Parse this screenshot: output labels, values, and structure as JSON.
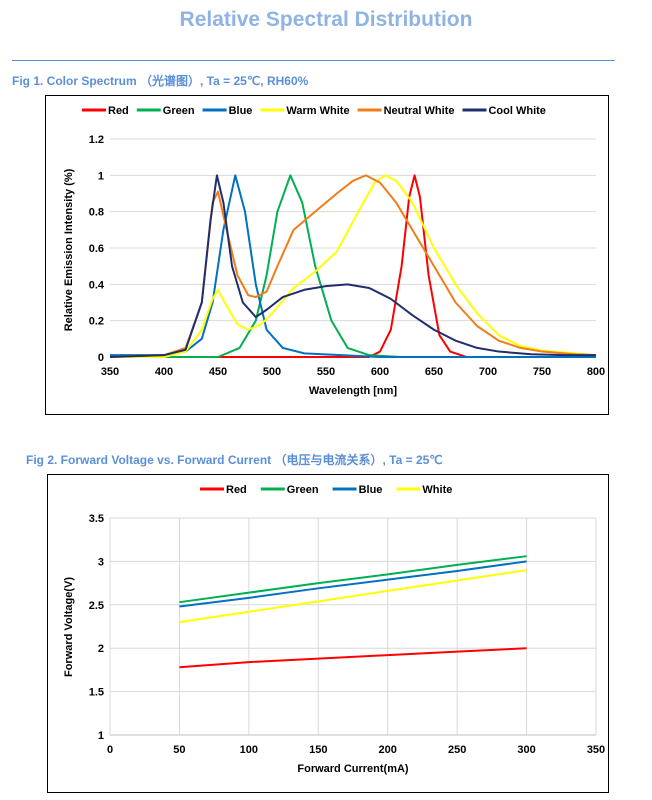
{
  "page": {
    "title": "Relative Spectral Distribution",
    "fig1_caption": "Fig 1. Color Spectrum （光谱图）, Ta = 25℃, RH60%",
    "fig2_caption": "Fig 2. Forward Voltage vs. Forward Current （电压与电流关系）, Ta = 25℃"
  },
  "chart_data": [
    {
      "type": "line",
      "xlabel": "Wavelength  [nm]",
      "ylabel": "Relative Emission Intensity (%)",
      "xlim": [
        350,
        800
      ],
      "ylim": [
        0,
        1.2
      ],
      "xticks": [
        350,
        400,
        450,
        500,
        550,
        600,
        650,
        700,
        750,
        800
      ],
      "yticks": [
        0,
        0.2,
        0.4,
        0.6,
        0.8,
        1,
        1.2
      ],
      "ytick_labels": [
        "0",
        "0.2",
        "0.4",
        "0.6",
        "0.8",
        "1",
        "1.2"
      ],
      "grid": true,
      "legend": "top",
      "series": [
        {
          "name": "Red",
          "color": "#ff0000",
          "points": [
            [
              350,
              0
            ],
            [
              590,
              0
            ],
            [
              600,
              0.03
            ],
            [
              610,
              0.15
            ],
            [
              620,
              0.5
            ],
            [
              627,
              0.88
            ],
            [
              632,
              1
            ],
            [
              637,
              0.88
            ],
            [
              645,
              0.45
            ],
            [
              655,
              0.12
            ],
            [
              665,
              0.03
            ],
            [
              680,
              0
            ],
            [
              800,
              0
            ]
          ]
        },
        {
          "name": "Green",
          "color": "#00b050",
          "points": [
            [
              350,
              0
            ],
            [
              450,
              0
            ],
            [
              470,
              0.05
            ],
            [
              485,
              0.2
            ],
            [
              495,
              0.45
            ],
            [
              505,
              0.8
            ],
            [
              517,
              1
            ],
            [
              528,
              0.85
            ],
            [
              540,
              0.5
            ],
            [
              555,
              0.2
            ],
            [
              570,
              0.05
            ],
            [
              590,
              0.01
            ],
            [
              620,
              0
            ],
            [
              800,
              0
            ]
          ]
        },
        {
          "name": "Blue",
          "color": "#0070c0",
          "points": [
            [
              350,
              0.01
            ],
            [
              400,
              0.01
            ],
            [
              420,
              0.03
            ],
            [
              435,
              0.1
            ],
            [
              445,
              0.3
            ],
            [
              455,
              0.7
            ],
            [
              466,
              1
            ],
            [
              475,
              0.8
            ],
            [
              485,
              0.4
            ],
            [
              495,
              0.15
            ],
            [
              510,
              0.05
            ],
            [
              530,
              0.02
            ],
            [
              600,
              0
            ],
            [
              800,
              0
            ]
          ]
        },
        {
          "name": "Warm White",
          "color": "#ffff00",
          "points": [
            [
              350,
              0
            ],
            [
              400,
              0
            ],
            [
              420,
              0.03
            ],
            [
              435,
              0.15
            ],
            [
              445,
              0.32
            ],
            [
              450,
              0.37
            ],
            [
              458,
              0.28
            ],
            [
              468,
              0.18
            ],
            [
              478,
              0.15
            ],
            [
              490,
              0.18
            ],
            [
              500,
              0.24
            ],
            [
              520,
              0.38
            ],
            [
              540,
              0.47
            ],
            [
              560,
              0.58
            ],
            [
              580,
              0.8
            ],
            [
              595,
              0.96
            ],
            [
              605,
              1
            ],
            [
              615,
              0.97
            ],
            [
              630,
              0.85
            ],
            [
              650,
              0.6
            ],
            [
              670,
              0.4
            ],
            [
              690,
              0.24
            ],
            [
              710,
              0.12
            ],
            [
              730,
              0.06
            ],
            [
              750,
              0.035
            ],
            [
              780,
              0.02
            ],
            [
              800,
              0.01
            ]
          ]
        },
        {
          "name": "Neutral White",
          "color": "#f07d1a",
          "points": [
            [
              350,
              0
            ],
            [
              400,
              0.01
            ],
            [
              420,
              0.05
            ],
            [
              435,
              0.3
            ],
            [
              445,
              0.85
            ],
            [
              450,
              0.91
            ],
            [
              458,
              0.7
            ],
            [
              468,
              0.45
            ],
            [
              478,
              0.34
            ],
            [
              485,
              0.33
            ],
            [
              495,
              0.36
            ],
            [
              505,
              0.5
            ],
            [
              520,
              0.7
            ],
            [
              540,
              0.8
            ],
            [
              560,
              0.9
            ],
            [
              575,
              0.97
            ],
            [
              587,
              1
            ],
            [
              600,
              0.96
            ],
            [
              615,
              0.85
            ],
            [
              630,
              0.7
            ],
            [
              650,
              0.5
            ],
            [
              670,
              0.3
            ],
            [
              690,
              0.17
            ],
            [
              710,
              0.09
            ],
            [
              730,
              0.05
            ],
            [
              750,
              0.03
            ],
            [
              780,
              0.015
            ],
            [
              800,
              0.01
            ]
          ]
        },
        {
          "name": "Cool White",
          "color": "#1f2f6e",
          "points": [
            [
              350,
              0
            ],
            [
              400,
              0.01
            ],
            [
              420,
              0.04
            ],
            [
              435,
              0.3
            ],
            [
              443,
              0.75
            ],
            [
              449,
              1
            ],
            [
              455,
              0.85
            ],
            [
              463,
              0.5
            ],
            [
              473,
              0.3
            ],
            [
              485,
              0.22
            ],
            [
              495,
              0.26
            ],
            [
              510,
              0.33
            ],
            [
              530,
              0.37
            ],
            [
              550,
              0.39
            ],
            [
              570,
              0.4
            ],
            [
              590,
              0.38
            ],
            [
              610,
              0.32
            ],
            [
              630,
              0.23
            ],
            [
              650,
              0.15
            ],
            [
              670,
              0.09
            ],
            [
              690,
              0.05
            ],
            [
              710,
              0.03
            ],
            [
              740,
              0.015
            ],
            [
              770,
              0.01
            ],
            [
              800,
              0.01
            ]
          ]
        }
      ]
    },
    {
      "type": "line",
      "xlabel": "Forward Current(mA)",
      "ylabel": "Forward Voltage(V)",
      "xlim": [
        0,
        350
      ],
      "ylim": [
        1,
        3.5
      ],
      "xticks": [
        0,
        50,
        100,
        150,
        200,
        250,
        300,
        350
      ],
      "yticks": [
        1,
        1.5,
        2,
        2.5,
        3,
        3.5
      ],
      "ytick_labels": [
        "1",
        "1.5",
        "2",
        "2.5",
        "3",
        "3.5"
      ],
      "grid": true,
      "legend": "top",
      "series": [
        {
          "name": "Red",
          "color": "#ff0000",
          "points": [
            [
              50,
              1.78
            ],
            [
              100,
              1.84
            ],
            [
              150,
              1.88
            ],
            [
              200,
              1.92
            ],
            [
              250,
              1.96
            ],
            [
              300,
              2.0
            ]
          ]
        },
        {
          "name": "Green",
          "color": "#00b050",
          "points": [
            [
              50,
              2.53
            ],
            [
              100,
              2.64
            ],
            [
              150,
              2.75
            ],
            [
              200,
              2.85
            ],
            [
              250,
              2.96
            ],
            [
              300,
              3.06
            ]
          ]
        },
        {
          "name": "Blue",
          "color": "#0070c0",
          "points": [
            [
              50,
              2.48
            ],
            [
              100,
              2.58
            ],
            [
              150,
              2.69
            ],
            [
              200,
              2.79
            ],
            [
              250,
              2.89
            ],
            [
              300,
              3.0
            ]
          ]
        },
        {
          "name": "White",
          "color": "#ffff00",
          "points": [
            [
              50,
              2.3
            ],
            [
              100,
              2.42
            ],
            [
              150,
              2.54
            ],
            [
              200,
              2.66
            ],
            [
              250,
              2.78
            ],
            [
              300,
              2.9
            ]
          ]
        }
      ]
    }
  ]
}
